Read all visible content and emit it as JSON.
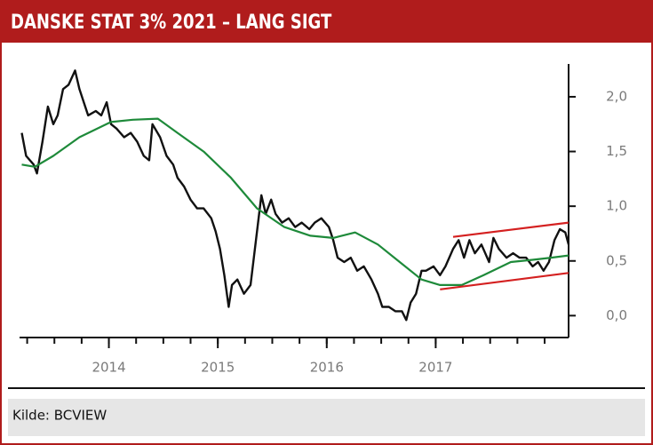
{
  "chart_data": {
    "type": "line",
    "title": "DANSKE STAT 3% 2021 – LANG SIGT",
    "xlim": [
      2013.18,
      2018.22
    ],
    "xticks": [
      2014,
      2015,
      2016,
      2017
    ],
    "ylim": [
      -0.2,
      2.3
    ],
    "yticks": [
      {
        "value": 0,
        "label": "0,0"
      },
      {
        "value": 0.5,
        "label": "0,5"
      },
      {
        "value": 1,
        "label": "1,0"
      },
      {
        "value": 1.5,
        "label": "1,5"
      },
      {
        "value": 2,
        "label": "2,0"
      }
    ],
    "series": [
      {
        "color": "#111111",
        "x": [
          2013.2,
          2013.24,
          2013.31,
          2013.34,
          2013.39,
          2013.44,
          2013.49,
          2013.53,
          2013.58,
          2013.63,
          2013.69,
          2013.73,
          2013.77,
          2013.81,
          2013.88,
          2013.93,
          2013.98,
          2014.02,
          2014.07,
          2014.14,
          2014.2,
          2014.26,
          2014.32,
          2014.37,
          2014.4,
          2014.47,
          2014.53,
          2014.59,
          2014.63,
          2014.69,
          2014.75,
          2014.81,
          2014.87,
          2014.94,
          2014.98,
          2015.02,
          2015.06,
          2015.1,
          2015.13,
          2015.18,
          2015.24,
          2015.3,
          2015.35,
          2015.4,
          2015.44,
          2015.49,
          2015.53,
          2015.59,
          2015.65,
          2015.71,
          2015.77,
          2015.84,
          2015.89,
          2015.95,
          2016.02,
          2016.06,
          2016.1,
          2016.16,
          2016.22,
          2016.28,
          2016.34,
          2016.41,
          2016.47,
          2016.51,
          2016.57,
          2016.63,
          2016.69,
          2016.73,
          2016.77,
          2016.82,
          2016.87,
          2016.91,
          2016.98,
          2017.04,
          2017.09,
          2017.16,
          2017.21,
          2017.26,
          2017.31,
          2017.36,
          2017.42,
          2017.49,
          2017.53,
          2017.58,
          2017.65,
          2017.71,
          2017.77,
          2017.83,
          2017.89,
          2017.94,
          2017.99,
          2018.04,
          2018.09,
          2018.14,
          2018.19,
          2018.22
        ],
        "values": [
          1.67,
          1.46,
          1.38,
          1.3,
          1.59,
          1.91,
          1.75,
          1.83,
          2.07,
          2.11,
          2.24,
          2.07,
          1.95,
          1.83,
          1.87,
          1.83,
          1.95,
          1.75,
          1.71,
          1.63,
          1.67,
          1.59,
          1.46,
          1.42,
          1.75,
          1.63,
          1.46,
          1.38,
          1.26,
          1.18,
          1.06,
          0.98,
          0.98,
          0.89,
          0.77,
          0.61,
          0.37,
          0.08,
          0.28,
          0.33,
          0.2,
          0.28,
          0.69,
          1.1,
          0.93,
          1.06,
          0.93,
          0.85,
          0.89,
          0.81,
          0.85,
          0.79,
          0.85,
          0.89,
          0.81,
          0.69,
          0.53,
          0.49,
          0.53,
          0.41,
          0.45,
          0.33,
          0.2,
          0.08,
          0.08,
          0.04,
          0.04,
          -0.04,
          0.12,
          0.2,
          0.41,
          0.41,
          0.45,
          0.37,
          0.45,
          0.61,
          0.69,
          0.53,
          0.69,
          0.57,
          0.65,
          0.49,
          0.71,
          0.61,
          0.53,
          0.57,
          0.53,
          0.53,
          0.45,
          0.49,
          0.41,
          0.49,
          0.69,
          0.79,
          0.76,
          0.65
        ]
      },
      {
        "color": "#1e8a3a",
        "x": [
          2013.2,
          2013.32,
          2013.49,
          2013.73,
          2014.02,
          2014.22,
          2014.45,
          2014.63,
          2014.87,
          2015.12,
          2015.36,
          2015.61,
          2015.85,
          2016.06,
          2016.26,
          2016.47,
          2016.67,
          2016.87,
          2017.04,
          2017.24,
          2017.44,
          2017.69,
          2017.89,
          2018.06,
          2018.22
        ],
        "values": [
          1.38,
          1.36,
          1.46,
          1.63,
          1.77,
          1.79,
          1.8,
          1.67,
          1.5,
          1.26,
          0.98,
          0.81,
          0.73,
          0.71,
          0.76,
          0.65,
          0.49,
          0.33,
          0.28,
          0.28,
          0.37,
          0.49,
          0.51,
          0.53,
          0.55
        ]
      },
      {
        "color": "#d42020",
        "x": [
          2017.16,
          2018.22
        ],
        "values": [
          0.72,
          0.85
        ]
      },
      {
        "color": "#d42020",
        "x": [
          2017.04,
          2018.22
        ],
        "values": [
          0.24,
          0.39
        ]
      }
    ],
    "source": "Kilde: BCVIEW"
  }
}
